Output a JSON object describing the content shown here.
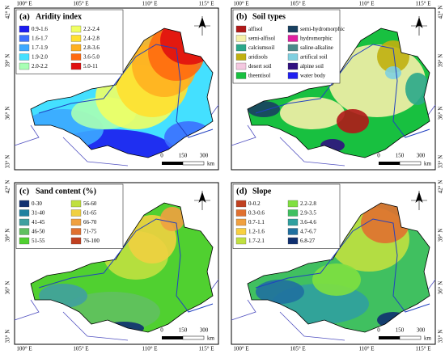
{
  "longitude_labels": [
    "100° E",
    "105° E",
    "110° E",
    "115° E"
  ],
  "latitude_labels": [
    "42° N",
    "39° N",
    "36° N",
    "33° N"
  ],
  "scale_bar": {
    "labels": [
      "0",
      "150",
      "300"
    ],
    "unit": "km"
  },
  "panels": [
    {
      "label": "(a)",
      "title": "Aridity index",
      "legend": [
        {
          "label": "0.9-1.6",
          "color": "#1c1cf0"
        },
        {
          "label": "1.6-1.7",
          "color": "#3c70ff"
        },
        {
          "label": "1.7-1.9",
          "color": "#3ca8ff"
        },
        {
          "label": "1.9-2.0",
          "color": "#44e0ff"
        },
        {
          "label": "2.0-2.2",
          "color": "#a8ffb4"
        },
        {
          "label": "2.2-2.4",
          "color": "#f0ff64"
        },
        {
          "label": "2.4-2.8",
          "color": "#ffe030"
        },
        {
          "label": "2.8-3.6",
          "color": "#ffb020"
        },
        {
          "label": "3.6-5.0",
          "color": "#ff6a10"
        },
        {
          "label": "5.0-11",
          "color": "#e01010"
        }
      ]
    },
    {
      "label": "(b)",
      "title": "Soil types",
      "legend": [
        {
          "label": "alfisol",
          "color": "#b01818"
        },
        {
          "label": "semi-alfisol",
          "color": "#f5f0a8"
        },
        {
          "label": "calciumsoil",
          "color": "#2aa88a"
        },
        {
          "label": "aridisols",
          "color": "#c0b010"
        },
        {
          "label": "desert soil",
          "color": "#f4c8e0"
        },
        {
          "label": "theentisol",
          "color": "#18c040"
        },
        {
          "label": "semi-hydromorphic",
          "color": "#184060"
        },
        {
          "label": "hydromorphic",
          "color": "#e020a0"
        },
        {
          "label": "saline-alkaline",
          "color": "#4a8a8a"
        },
        {
          "label": "artifical soil",
          "color": "#80d0e0"
        },
        {
          "label": "alpine soil",
          "color": "#301080"
        },
        {
          "label": "water body",
          "color": "#2020f0"
        }
      ]
    },
    {
      "label": "(c)",
      "title": "Sand content (%)",
      "legend": [
        {
          "label": "0-30",
          "color": "#103070"
        },
        {
          "label": "31-40",
          "color": "#2080a0"
        },
        {
          "label": "41-45",
          "color": "#40a0a0"
        },
        {
          "label": "46-50",
          "color": "#60c060"
        },
        {
          "label": "51-55",
          "color": "#50d030"
        },
        {
          "label": "56-60",
          "color": "#c0e040"
        },
        {
          "label": "61-65",
          "color": "#f0d040"
        },
        {
          "label": "66-70",
          "color": "#f0a040"
        },
        {
          "label": "71-75",
          "color": "#e07030"
        },
        {
          "label": "76-100",
          "color": "#c04020"
        }
      ]
    },
    {
      "label": "(d)",
      "title": "Slope",
      "legend": [
        {
          "label": "0-0.2",
          "color": "#c04020"
        },
        {
          "label": "0.3-0.6",
          "color": "#e07030"
        },
        {
          "label": "0.7-1.1",
          "color": "#f0a040"
        },
        {
          "label": "1.2-1.6",
          "color": "#f8d040"
        },
        {
          "label": "1.7-2.1",
          "color": "#c0e040"
        },
        {
          "label": "2.2-2.8",
          "color": "#80e040"
        },
        {
          "label": "2.9-3.5",
          "color": "#40c060"
        },
        {
          "label": "3.6-4.6",
          "color": "#30a0a0"
        },
        {
          "label": "4.7-6.7",
          "color": "#2070a0"
        },
        {
          "label": "6.8-27",
          "color": "#103070"
        }
      ]
    }
  ]
}
